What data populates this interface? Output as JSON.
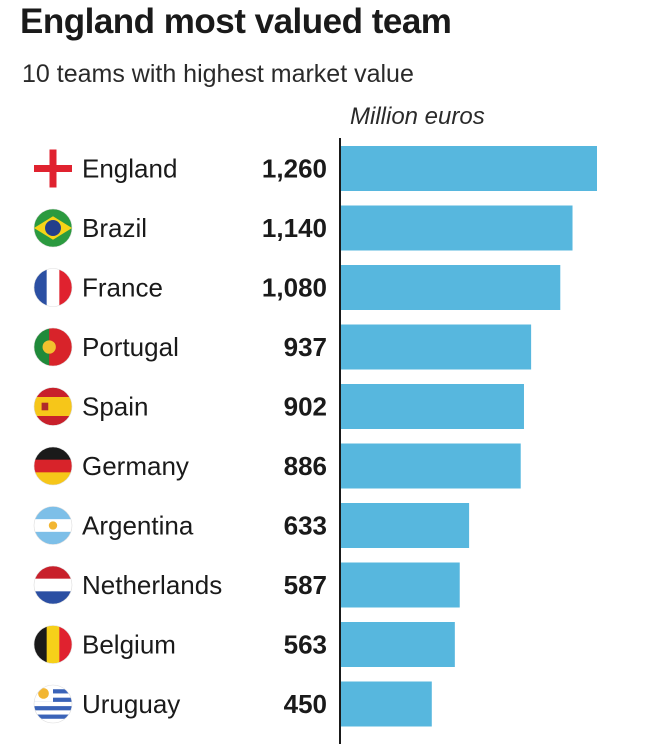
{
  "header": {
    "title": "England most valued team",
    "subtitle": "10 teams with highest market value",
    "unit": "Million euros"
  },
  "colors": {
    "bar": "#57b7de",
    "axis": "#1a1a1a",
    "text": "#1a1a1a"
  },
  "chart_data": {
    "type": "bar",
    "orientation": "horizontal",
    "title": "England most valued team",
    "subtitle": "10 teams with highest market value",
    "xlabel": "Million euros",
    "ylabel": "",
    "grid": false,
    "categories": [
      "England",
      "Brazil",
      "France",
      "Portugal",
      "Spain",
      "Germany",
      "Argentina",
      "Netherlands",
      "Belgium",
      "Uruguay"
    ],
    "value_labels": [
      "1,260",
      "1,140",
      "1,080",
      "937",
      "902",
      "886",
      "633",
      "587",
      "563",
      "450"
    ],
    "values": [
      1260,
      1140,
      1080,
      937,
      902,
      886,
      633,
      587,
      563,
      450
    ],
    "flags": [
      "england-flag-icon",
      "brazil-flag-icon",
      "france-flag-icon",
      "portugal-flag-icon",
      "spain-flag-icon",
      "germany-flag-icon",
      "argentina-flag-icon",
      "netherlands-flag-icon",
      "belgium-flag-icon",
      "uruguay-flag-icon"
    ],
    "xlim": [
      0,
      1300
    ]
  }
}
